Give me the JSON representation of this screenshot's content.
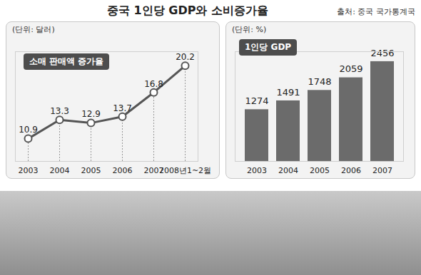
{
  "title": "중국 1인당 GDP와 소비증가율",
  "source": "출처: 중국 국가통계국",
  "chart_data": [
    {
      "type": "line",
      "subtitle": "(단위: 달러)",
      "categories": [
        "2003",
        "2004",
        "2005",
        "2006",
        "2007",
        "2008년1~2월"
      ],
      "series": [
        {
          "name": "소매 판매액 증가율",
          "color": "#555555",
          "values": [
            10.9,
            13.3,
            12.9,
            13.7,
            16.8,
            20.2
          ]
        }
      ],
      "ylim": [
        8,
        22
      ],
      "tick_labels": "x",
      "data_labels": true,
      "marker": "circle"
    },
    {
      "type": "bar",
      "subtitle": "(단위: %)",
      "categories": [
        "2003",
        "2004",
        "2005",
        "2006",
        "2007"
      ],
      "series": [
        {
          "name": "1인당 GDP",
          "color": "#6b6b6b",
          "values": [
            1274,
            1491,
            1748,
            2059,
            2456
          ]
        }
      ],
      "ylim": [
        0,
        2700
      ],
      "tick_labels": "x",
      "data_labels": true
    }
  ]
}
